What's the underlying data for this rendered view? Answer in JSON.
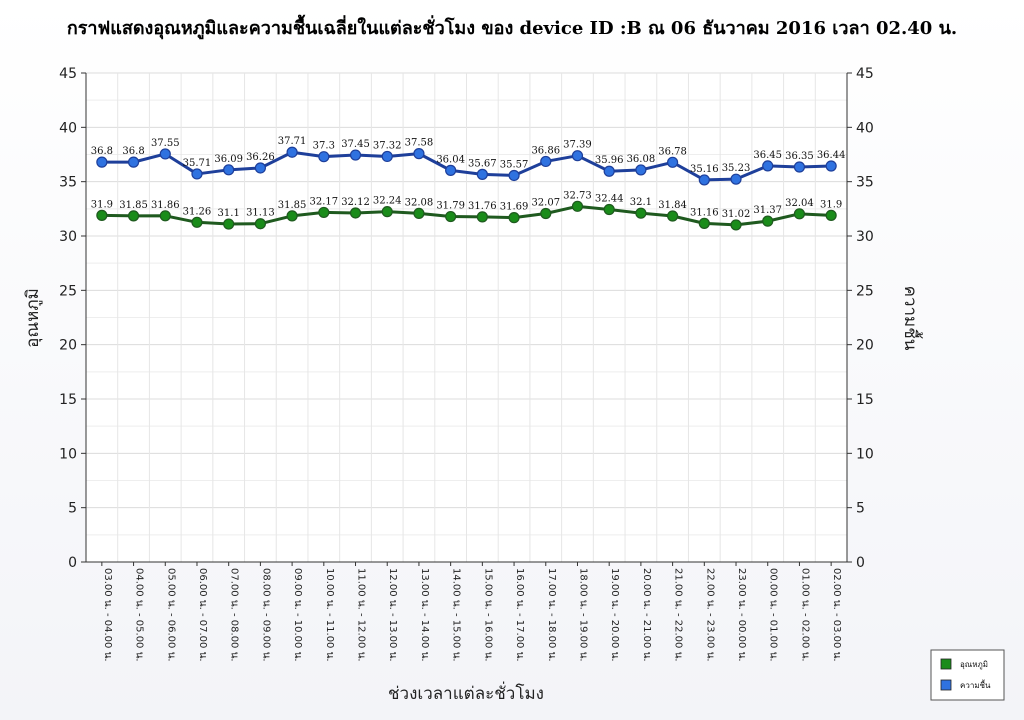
{
  "chart_data": {
    "type": "line",
    "title": "กราฟแสดงอุณหภูมิและความชื้นเฉลี่ยในแต่ละชั่วโมง ของ device ID :B ณ 06 ธันวาคม 2016 เวลา 02.40 น.",
    "xlabel": "ช่วงเวลาแต่ละชั่วโมง",
    "ylabel_left": "อุณหภูมิ",
    "ylabel_right": "ความชื้น",
    "ylim": [
      0,
      45
    ],
    "yticks": [
      0,
      5,
      10,
      15,
      20,
      25,
      30,
      35,
      40,
      45
    ],
    "grid": true,
    "legend_position": "bottom-right",
    "categories": [
      "03.00 น. - 04.00 น.",
      "04.00 น. - 05.00 น.",
      "05.00 น. - 06.00 น.",
      "06.00 น. - 07.00 น.",
      "07.00 น. - 08.00 น.",
      "08.00 น. - 09.00 น.",
      "09.00 น. - 10.00 น.",
      "10.00 น. - 11.00 น.",
      "11.00 น. - 12.00 น.",
      "12.00 น. - 13.00 น.",
      "13.00 น. - 14.00 น.",
      "14.00 น. - 15.00 น.",
      "15.00 น. - 16.00 น.",
      "16.00 น. - 17.00 น.",
      "17.00 น. - 18.00 น.",
      "18.00 น. - 19.00 น.",
      "19.00 น. - 20.00 น.",
      "20.00 น. - 21.00 น.",
      "21.00 น. - 22.00 น.",
      "22.00 น. - 23.00 น.",
      "23.00 น. - 00.00 น.",
      "00.00 น. - 01.00 น.",
      "01.00 น. - 02.00 น.",
      "02.00 น. - 03.00 น."
    ],
    "series": [
      {
        "name": "อุณหภูมิ",
        "color": "#1a8c1a",
        "line_color": "#1f5a1f",
        "values": [
          31.9,
          31.85,
          31.86,
          31.26,
          31.1,
          31.13,
          31.85,
          32.17,
          32.12,
          32.24,
          32.08,
          31.79,
          31.76,
          31.69,
          32.07,
          32.73,
          32.44,
          32.1,
          31.84,
          31.16,
          31.02,
          31.37,
          32.04,
          31.9
        ]
      },
      {
        "name": "ความชื้น",
        "color": "#2f72e0",
        "line_color": "#1e3f9a",
        "values": [
          36.8,
          36.8,
          37.55,
          35.71,
          36.09,
          36.26,
          37.71,
          37.3,
          37.45,
          37.32,
          37.58,
          36.04,
          35.67,
          35.57,
          36.86,
          37.39,
          35.96,
          36.08,
          36.78,
          35.16,
          35.23,
          36.45,
          36.35,
          36.44
        ]
      }
    ]
  }
}
